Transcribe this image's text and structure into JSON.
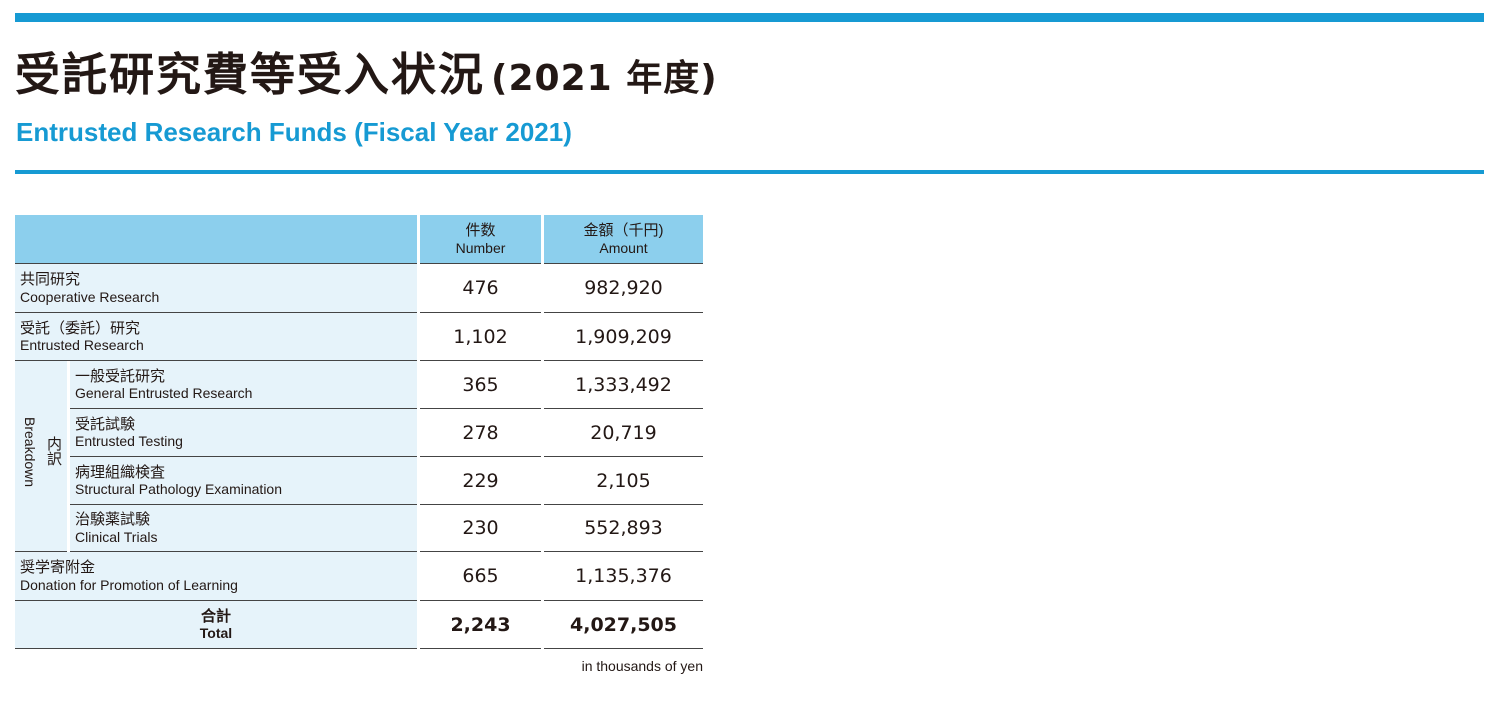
{
  "heading": {
    "title_jp": "受託研究費等受入状況",
    "title_year": "(2021 年度)",
    "title_en": "Entrusted Research Funds (Fiscal Year 2021)"
  },
  "table": {
    "header": {
      "number_jp": "件数",
      "number_en": "Number",
      "amount_jp": "金額（千円)",
      "amount_en": "Amount"
    },
    "breakdown_label_jp": "内訳",
    "breakdown_label_en": "Breakdown",
    "rows": [
      {
        "jp": "共同研究",
        "en": "Cooperative Research",
        "number": "476",
        "amount": "982,920"
      },
      {
        "jp": "受託（委託）研究",
        "en": "Entrusted Research",
        "number": "1,102",
        "amount": "1,909,209"
      },
      {
        "jp": "一般受託研究",
        "en": "General Entrusted Research",
        "number": "365",
        "amount": "1,333,492"
      },
      {
        "jp": "受託試験",
        "en": "Entrusted Testing",
        "number": "278",
        "amount": "20,719"
      },
      {
        "jp": "病理組織検査",
        "en": "Structural Pathology Examination",
        "number": "229",
        "amount": "2,105"
      },
      {
        "jp": "治験薬試験",
        "en": "Clinical Trials",
        "number": "230",
        "amount": "552,893"
      },
      {
        "jp": "奨学寄附金",
        "en": "Donation for Promotion of Learning",
        "number": "665",
        "amount": "1,135,376"
      }
    ],
    "total": {
      "jp": "合計",
      "en": "Total",
      "number": "2,243",
      "amount": "4,027,505"
    },
    "unit_note": "in thousands of yen"
  },
  "colors": {
    "accent": "#169ad3",
    "header_bg": "#8ccfed",
    "label_bg": "#e6f3fa"
  }
}
